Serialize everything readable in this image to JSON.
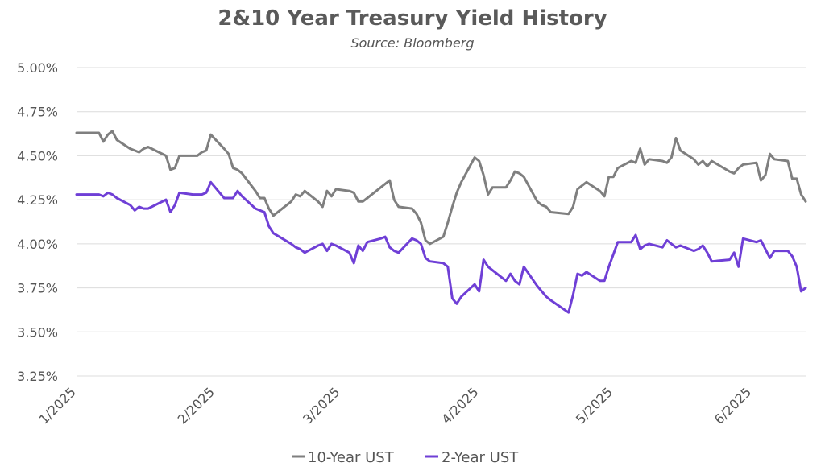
{
  "chart_data": {
    "type": "line",
    "title": "2&10 Year Treasury Yield History",
    "subtitle": "Source: Bloomberg",
    "xlabel": "",
    "ylabel": "",
    "ylim": [
      3.25,
      5.0
    ],
    "yticks": [
      "3.25%",
      "3.50%",
      "3.75%",
      "4.00%",
      "4.25%",
      "4.50%",
      "4.75%",
      "5.00%"
    ],
    "ytick_values": [
      3.25,
      3.5,
      3.75,
      4.0,
      4.25,
      4.5,
      4.75,
      5.0
    ],
    "xlim": [
      "2025-01-01",
      "2025-06-13"
    ],
    "xticks": [
      "1/2025",
      "2/2025",
      "3/2025",
      "4/2025",
      "5/2025",
      "6/2025"
    ],
    "xtick_dates": [
      "2025-01-01",
      "2025-02-01",
      "2025-03-01",
      "2025-04-01",
      "2025-05-01",
      "2025-06-01"
    ],
    "grid": true,
    "legend_position": "bottom-center",
    "series": [
      {
        "name": "10-Year UST",
        "color": "#7f7f7f",
        "x": [
          "2025-01-01",
          "2025-01-03",
          "2025-01-06",
          "2025-01-07",
          "2025-01-08",
          "2025-01-09",
          "2025-01-10",
          "2025-01-13",
          "2025-01-14",
          "2025-01-15",
          "2025-01-16",
          "2025-01-17",
          "2025-01-21",
          "2025-01-22",
          "2025-01-23",
          "2025-01-24",
          "2025-01-27",
          "2025-01-28",
          "2025-01-29",
          "2025-01-30",
          "2025-01-31",
          "2025-02-03",
          "2025-02-04",
          "2025-02-05",
          "2025-02-06",
          "2025-02-07",
          "2025-02-10",
          "2025-02-11",
          "2025-02-12",
          "2025-02-13",
          "2025-02-14",
          "2025-02-18",
          "2025-02-19",
          "2025-02-20",
          "2025-02-21",
          "2025-02-24",
          "2025-02-25",
          "2025-02-26",
          "2025-02-27",
          "2025-02-28",
          "2025-03-03",
          "2025-03-04",
          "2025-03-05",
          "2025-03-06",
          "2025-03-07",
          "2025-03-10",
          "2025-03-11",
          "2025-03-12",
          "2025-03-13",
          "2025-03-14",
          "2025-03-17",
          "2025-03-18",
          "2025-03-19",
          "2025-03-20",
          "2025-03-21",
          "2025-03-24",
          "2025-03-25",
          "2025-03-26",
          "2025-03-27",
          "2025-03-28",
          "2025-03-31",
          "2025-04-01",
          "2025-04-02",
          "2025-04-03",
          "2025-04-04",
          "2025-04-07",
          "2025-04-08",
          "2025-04-09",
          "2025-04-10",
          "2025-04-11",
          "2025-04-14",
          "2025-04-15",
          "2025-04-16",
          "2025-04-17",
          "2025-04-21",
          "2025-04-22",
          "2025-04-23",
          "2025-04-24",
          "2025-04-25",
          "2025-04-28",
          "2025-04-29",
          "2025-04-30",
          "2025-05-01",
          "2025-05-02",
          "2025-05-05",
          "2025-05-06",
          "2025-05-07",
          "2025-05-08",
          "2025-05-09",
          "2025-05-12",
          "2025-05-13",
          "2025-05-14",
          "2025-05-15",
          "2025-05-16",
          "2025-05-19",
          "2025-05-20",
          "2025-05-21",
          "2025-05-22",
          "2025-05-23",
          "2025-05-27",
          "2025-05-28",
          "2025-05-29",
          "2025-05-30",
          "2025-06-02",
          "2025-06-03",
          "2025-06-04",
          "2025-06-05",
          "2025-06-06",
          "2025-06-09",
          "2025-06-10",
          "2025-06-11",
          "2025-06-12",
          "2025-06-13"
        ],
        "values": [
          4.63,
          4.63,
          4.63,
          4.58,
          4.62,
          4.64,
          4.59,
          4.54,
          4.53,
          4.52,
          4.54,
          4.55,
          4.5,
          4.42,
          4.43,
          4.5,
          4.5,
          4.5,
          4.52,
          4.53,
          4.62,
          4.54,
          4.51,
          4.43,
          4.42,
          4.4,
          4.3,
          4.26,
          4.26,
          4.2,
          4.16,
          4.24,
          4.28,
          4.27,
          4.3,
          4.24,
          4.21,
          4.3,
          4.27,
          4.31,
          4.3,
          4.29,
          4.24,
          4.24,
          4.26,
          4.32,
          4.34,
          4.36,
          4.25,
          4.21,
          4.2,
          4.17,
          4.12,
          4.02,
          4.0,
          4.04,
          4.12,
          4.21,
          4.29,
          4.35,
          4.49,
          4.47,
          4.39,
          4.28,
          4.32,
          4.32,
          4.36,
          4.41,
          4.4,
          4.38,
          4.24,
          4.22,
          4.21,
          4.18,
          4.17,
          4.21,
          4.31,
          4.33,
          4.35,
          4.3,
          4.27,
          4.38,
          4.38,
          4.43,
          4.47,
          4.46,
          4.54,
          4.45,
          4.48,
          4.47,
          4.46,
          4.49,
          4.6,
          4.53,
          4.48,
          4.45,
          4.47,
          4.44,
          4.47,
          4.41,
          4.4,
          4.43,
          4.45,
          4.46,
          4.36,
          4.39,
          4.51,
          4.48,
          4.47,
          4.37,
          4.37,
          4.28,
          4.24
        ],
        "note_unused": ""
      },
      {
        "name": "2-Year UST",
        "color": "#6f3fd6",
        "x": [
          "2025-01-01",
          "2025-01-03",
          "2025-01-06",
          "2025-01-07",
          "2025-01-08",
          "2025-01-09",
          "2025-01-10",
          "2025-01-13",
          "2025-01-14",
          "2025-01-15",
          "2025-01-16",
          "2025-01-17",
          "2025-01-21",
          "2025-01-22",
          "2025-01-23",
          "2025-01-24",
          "2025-01-27",
          "2025-01-28",
          "2025-01-29",
          "2025-01-30",
          "2025-01-31",
          "2025-02-03",
          "2025-02-04",
          "2025-02-05",
          "2025-02-06",
          "2025-02-07",
          "2025-02-10",
          "2025-02-11",
          "2025-02-12",
          "2025-02-13",
          "2025-02-14",
          "2025-02-18",
          "2025-02-19",
          "2025-02-20",
          "2025-02-21",
          "2025-02-24",
          "2025-02-25",
          "2025-02-26",
          "2025-02-27",
          "2025-02-28",
          "2025-03-03",
          "2025-03-04",
          "2025-03-05",
          "2025-03-06",
          "2025-03-07",
          "2025-03-10",
          "2025-03-11",
          "2025-03-12",
          "2025-03-13",
          "2025-03-14",
          "2025-03-17",
          "2025-03-18",
          "2025-03-19",
          "2025-03-20",
          "2025-03-21",
          "2025-03-24",
          "2025-03-25",
          "2025-03-26",
          "2025-03-27",
          "2025-03-28",
          "2025-03-31",
          "2025-04-01",
          "2025-04-02",
          "2025-04-03",
          "2025-04-04",
          "2025-04-07",
          "2025-04-08",
          "2025-04-09",
          "2025-04-10",
          "2025-04-11",
          "2025-04-14",
          "2025-04-15",
          "2025-04-16",
          "2025-04-17",
          "2025-04-21",
          "2025-04-22",
          "2025-04-23",
          "2025-04-24",
          "2025-04-25",
          "2025-04-28",
          "2025-04-29",
          "2025-04-30",
          "2025-05-01",
          "2025-05-02",
          "2025-05-05",
          "2025-05-06",
          "2025-05-07",
          "2025-05-08",
          "2025-05-09",
          "2025-05-12",
          "2025-05-13",
          "2025-05-14",
          "2025-05-15",
          "2025-05-16",
          "2025-05-19",
          "2025-05-20",
          "2025-05-21",
          "2025-05-22",
          "2025-05-23",
          "2025-05-27",
          "2025-05-28",
          "2025-05-29",
          "2025-05-30",
          "2025-06-02",
          "2025-06-03",
          "2025-06-04",
          "2025-06-05",
          "2025-06-06",
          "2025-06-09",
          "2025-06-10",
          "2025-06-11",
          "2025-06-12",
          "2025-06-13"
        ],
        "values": [
          4.28,
          4.28,
          4.28,
          4.27,
          4.29,
          4.28,
          4.26,
          4.22,
          4.19,
          4.21,
          4.2,
          4.2,
          4.25,
          4.18,
          4.22,
          4.29,
          4.28,
          4.28,
          4.28,
          4.29,
          4.35,
          4.26,
          4.26,
          4.26,
          4.3,
          4.27,
          4.2,
          4.19,
          4.18,
          4.1,
          4.06,
          4.0,
          3.98,
          3.97,
          3.95,
          3.99,
          4.0,
          3.96,
          4.0,
          3.99,
          3.95,
          3.89,
          3.99,
          3.96,
          4.01,
          4.03,
          4.04,
          3.98,
          3.96,
          3.95,
          4.03,
          4.02,
          4.0,
          3.92,
          3.9,
          3.89,
          3.87,
          3.69,
          3.66,
          3.7,
          3.77,
          3.73,
          3.91,
          3.87,
          3.85,
          3.79,
          3.83,
          3.79,
          3.77,
          3.87,
          3.76,
          3.73,
          3.7,
          3.68,
          3.61,
          3.71,
          3.83,
          3.82,
          3.84,
          3.79,
          3.79,
          3.87,
          3.94,
          4.01,
          4.01,
          4.05,
          3.97,
          3.99,
          4.0,
          3.98,
          4.02,
          4.0,
          3.98,
          3.99,
          3.96,
          3.97,
          3.99,
          3.95,
          3.9,
          3.91,
          3.95,
          3.87,
          4.03,
          4.01,
          4.02,
          3.97,
          3.92,
          3.96,
          3.96,
          3.93,
          3.87,
          3.73,
          3.75
        ],
        "note_unused": ""
      }
    ]
  }
}
